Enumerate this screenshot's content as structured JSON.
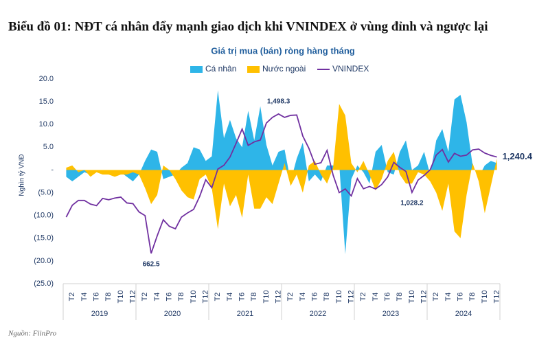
{
  "chart_data": {
    "type": "area-line",
    "title": "Biểu đồ 01: NĐT cá nhân đẩy mạnh giao dịch khi VNINDEX ở vùng đỉnh và ngược lại",
    "subtitle": "Giá trị mua (bán) ròng hàng tháng",
    "y_label": "Nghìn tỷ VNĐ",
    "source": "Nguồn: FiinPro",
    "categories": [
      null,
      "T2",
      null,
      "T4",
      null,
      "T6",
      null,
      "T8",
      null,
      "T10",
      null,
      "T12",
      null,
      "T2",
      null,
      "T4",
      null,
      "T6",
      null,
      "T8",
      null,
      "T10",
      null,
      "T12",
      null,
      "T2",
      null,
      "T4",
      null,
      "T6",
      null,
      "T8",
      null,
      "T10",
      null,
      "T12",
      null,
      "T2",
      null,
      "T4",
      null,
      "T6",
      null,
      "T8",
      null,
      "T10",
      null,
      "T12",
      null,
      "T2",
      null,
      "T4",
      null,
      "T6",
      null,
      "T8",
      null,
      "T10",
      null,
      "T12",
      null,
      "T2",
      null,
      "T4",
      null,
      "T6",
      null,
      "T8",
      null,
      "T10",
      null,
      "T12"
    ],
    "year_groups": [
      "2019",
      "2020",
      "2021",
      "2022",
      "2023",
      "2024"
    ],
    "ylim": [
      -25,
      20
    ],
    "yticks": [
      {
        "value": 20,
        "label": "20.0"
      },
      {
        "value": 15,
        "label": "15.0"
      },
      {
        "value": 10,
        "label": "10.0"
      },
      {
        "value": 5,
        "label": "5.0"
      },
      {
        "value": 0,
        "label": "-"
      },
      {
        "value": -5,
        "label": "(5.0)"
      },
      {
        "value": -10,
        "label": "(10.0)"
      },
      {
        "value": -15,
        "label": "(15.0)"
      },
      {
        "value": -20,
        "label": "(20.0)"
      },
      {
        "value": -25,
        "label": "(25.0)"
      }
    ],
    "y2lim": [
      481,
      1708
    ],
    "series": [
      {
        "name": "Cá nhân",
        "kind": "area",
        "color": "#2eb5e8",
        "values": [
          -1.5,
          -2.5,
          -1.5,
          -0.5,
          -1,
          -0.5,
          0,
          -1,
          -1,
          -0.5,
          -1.5,
          -2.5,
          -1,
          2,
          4.5,
          4,
          -2,
          -1.5,
          -1,
          0.5,
          1.5,
          5,
          4.5,
          2,
          3,
          17.5,
          7,
          11,
          7,
          5,
          13,
          6.5,
          14,
          5.5,
          1,
          4,
          4.5,
          -2.5,
          2.5,
          6,
          -2.5,
          -1,
          -2.5,
          1,
          1,
          1.5,
          -18.5,
          -2,
          1,
          -0.5,
          -3,
          4,
          5.5,
          -0.5,
          -1,
          4,
          6.5,
          0,
          1,
          4,
          -1,
          6.5,
          9,
          4,
          15.5,
          16.5,
          10.5,
          1,
          -1.5,
          1,
          2,
          1.5
        ]
      },
      {
        "name": "Nước ngoài",
        "kind": "area",
        "color": "#ffc000",
        "values": [
          0.5,
          1,
          -0.5,
          0,
          -1.5,
          -0.5,
          -1,
          -1,
          -1.5,
          -1,
          -1,
          -0.5,
          -1,
          -4,
          -7.5,
          -5.5,
          1,
          0,
          -2,
          -4.5,
          -6,
          -6.5,
          -2,
          -1,
          -4,
          -13,
          -3,
          -8,
          -5.5,
          -10.5,
          -1,
          -8.5,
          -8.5,
          -6,
          -7.5,
          -3,
          1.5,
          -3.5,
          -1,
          -5,
          1,
          2,
          -1,
          -3,
          0.5,
          14.5,
          12,
          1.5,
          -0.5,
          2,
          -1,
          -4.5,
          -2,
          2,
          4,
          -1,
          -3,
          -3,
          -0.5,
          -1,
          -2.5,
          -5,
          -9,
          -3,
          -13.5,
          -15,
          -5.5,
          1.5,
          -2.5,
          -9.5,
          -3.5,
          2.5
        ]
      },
      {
        "name": "VNINDEX",
        "kind": "line",
        "axis": "y2",
        "color": "#7030a0",
        "values": [
          880,
          951,
          980,
          980,
          958,
          949,
          992,
          984,
          994,
          1000,
          965,
          961,
          911,
          889,
          662.5,
          768,
          864,
          825,
          810,
          880,
          905,
          926,
          1004,
          1104,
          1056,
          1168,
          1191,
          1240,
          1322,
          1408,
          1310,
          1331,
          1342,
          1444,
          1478,
          1498.3,
          1478,
          1490,
          1492,
          1366,
          1293,
          1197,
          1206,
          1280,
          1132,
          1027,
          1049,
          1007,
          1111,
          1050,
          1064,
          1049,
          1075,
          1121,
          1208,
          1178,
          1154,
          1028.2,
          1102,
          1130,
          1164,
          1252,
          1285,
          1210,
          1262,
          1245,
          1252,
          1283,
          1288,
          1264,
          1250,
          1240.4
        ],
        "value_labels": [
          null,
          null,
          null,
          null,
          null,
          null,
          null,
          null,
          null,
          null,
          null,
          null,
          null,
          null,
          "662.5",
          null,
          null,
          null,
          null,
          null,
          null,
          null,
          null,
          null,
          null,
          null,
          null,
          null,
          null,
          null,
          null,
          null,
          null,
          null,
          null,
          "1,498.3",
          null,
          null,
          null,
          null,
          null,
          null,
          null,
          null,
          null,
          null,
          null,
          null,
          null,
          null,
          null,
          null,
          null,
          null,
          null,
          null,
          null,
          "1,028.2",
          null,
          null,
          null,
          null,
          null,
          null,
          null,
          null,
          null,
          null,
          null,
          null,
          null,
          "1,240.4"
        ]
      }
    ]
  }
}
